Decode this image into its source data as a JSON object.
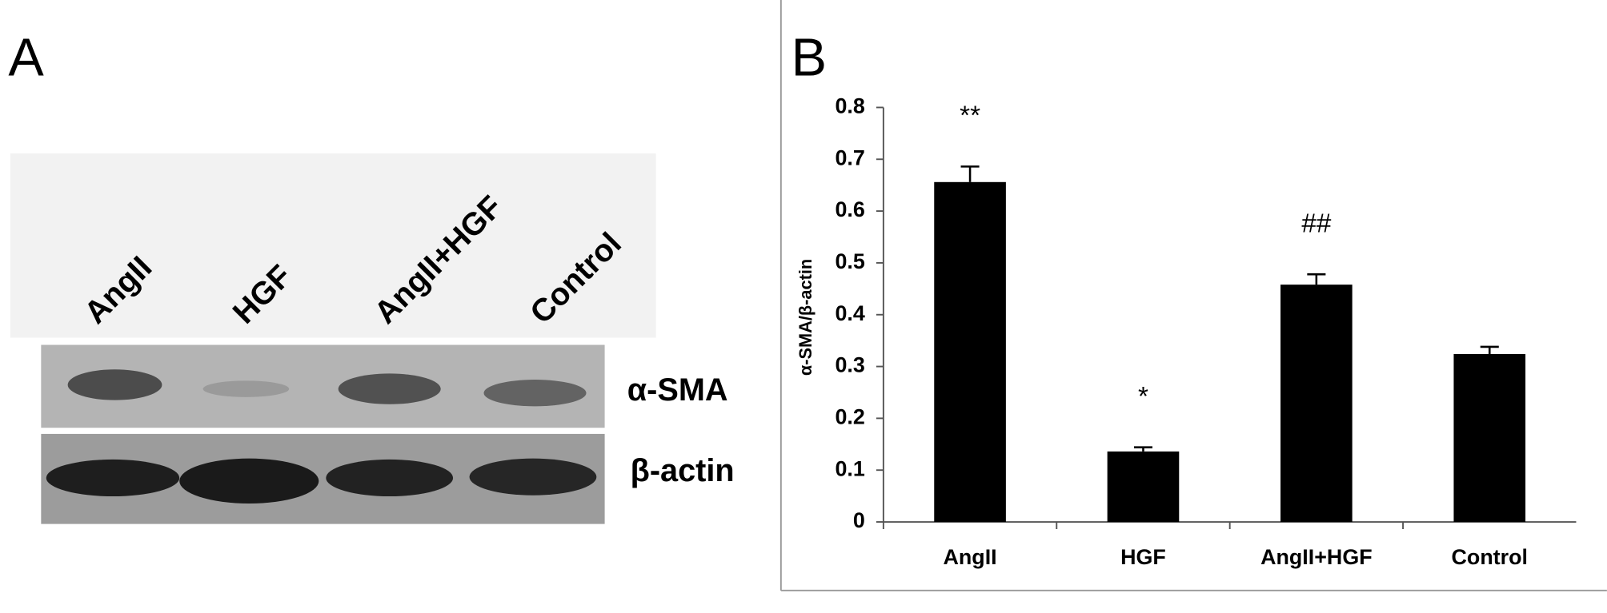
{
  "panel_a": {
    "label": "A",
    "lanes": [
      "AngII",
      "HGF",
      "AngII+HGF",
      "Control"
    ],
    "bands": [
      "α-SMA",
      "β-actin"
    ]
  },
  "chart_data": {
    "type": "bar",
    "panel_label": "B",
    "ylabel": "α-SMA/β-actin",
    "categories": [
      "AngII",
      "HGF",
      "AngII+HGF",
      "Control"
    ],
    "values": [
      0.656,
      0.136,
      0.458,
      0.324
    ],
    "errors": [
      0.03,
      0.008,
      0.02,
      0.014
    ],
    "value_annotations": [
      "**",
      "*",
      "##",
      null
    ],
    "color": "#000000",
    "ylim": [
      0,
      0.8
    ],
    "yticks": [
      0,
      0.1,
      0.2,
      0.3,
      0.4,
      0.5,
      0.6,
      0.7,
      0.8
    ]
  }
}
